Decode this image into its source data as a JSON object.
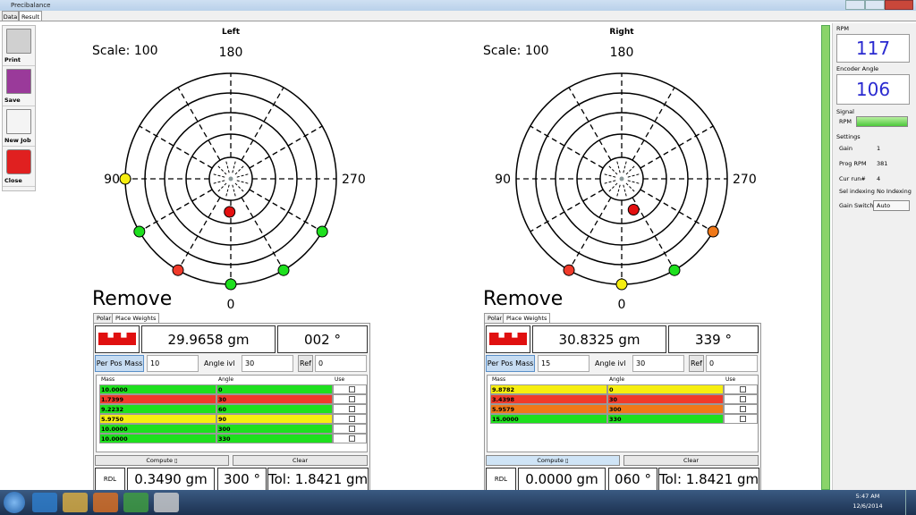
{
  "window": {
    "title": "Precibalance"
  },
  "tabs": [
    "Data",
    "Result"
  ],
  "toolbar": [
    "Print",
    "Save",
    "New Job",
    "Close"
  ],
  "panels": [
    {
      "title": "Left",
      "scale": "Scale: 100",
      "axis_labels": {
        "top": "180",
        "left": "90",
        "right": "270",
        "bottom": "0"
      },
      "action": "Remove",
      "subtabs": [
        "Polar",
        "Place Weights"
      ],
      "weight": "29.9658 gm",
      "angle": "002 °",
      "per_pos_button": "Per Pos Mass",
      "per_pos_value": "10",
      "angle_ivl_label": "Angle ivl",
      "angle_ivl_value": "30",
      "ref_button": "Ref",
      "ref_value": "0",
      "columns": [
        "Mass",
        "Angle",
        "Use"
      ],
      "rows": [
        {
          "mass": "10.0000",
          "angle": 0,
          "color": "#1ee01e"
        },
        {
          "mass": "1.7399",
          "angle": 30,
          "color": "#f03a2a"
        },
        {
          "mass": "9.2232",
          "angle": 60,
          "color": "#1ee01e"
        },
        {
          "mass": "5.9750",
          "angle": 90,
          "color": "#f6ee10"
        },
        {
          "mass": "10.0000",
          "angle": 300,
          "color": "#1ee01e"
        },
        {
          "mass": "10.0000",
          "angle": 330,
          "color": "#1ee01e"
        }
      ],
      "compute": "Compute ▯",
      "clear": "Clear",
      "footer": [
        "RDL",
        "0.3490 gm",
        "300 °",
        "Tol: 1.8421 gm"
      ]
    },
    {
      "title": "Right",
      "scale": "Scale: 100",
      "axis_labels": {
        "top": "180",
        "left": "90",
        "right": "270",
        "bottom": "0"
      },
      "action": "Remove",
      "subtabs": [
        "Polar",
        "Place Weights"
      ],
      "weight": "30.8325 gm",
      "angle": "339 °",
      "per_pos_button": "Per Pos Mass",
      "per_pos_value": "15",
      "angle_ivl_label": "Angle ivl",
      "angle_ivl_value": "30",
      "ref_button": "Ref",
      "ref_value": "0",
      "columns": [
        "Mass",
        "Angle",
        "Use"
      ],
      "rows": [
        {
          "mass": "9.8782",
          "angle": 0,
          "color": "#f6ee10"
        },
        {
          "mass": "3.4398",
          "angle": 30,
          "color": "#f03a2a"
        },
        {
          "mass": "5.9579",
          "angle": 300,
          "color": "#f07818"
        },
        {
          "mass": "15.0000",
          "angle": 330,
          "color": "#1ee01e"
        }
      ],
      "compute": "Compute ▯",
      "clear": "Clear",
      "footer": [
        "RDL",
        "0.0000 gm",
        "060 °",
        "Tol: 1.8421 gm"
      ]
    }
  ],
  "sidebar": {
    "rpm_label": "RPM",
    "rpm_value": "117",
    "encoder_label": "Encoder Angle",
    "encoder_value": "106",
    "signal_label": "Signal",
    "signal_rpm": "RPM",
    "settings_label": "Settings",
    "settings": [
      [
        "Gain",
        "1"
      ],
      [
        "Prog RPM",
        "381"
      ],
      [
        "Cur run#",
        "4"
      ],
      [
        "Sel indexing",
        "No Indexing"
      ],
      [
        "Gain Switch",
        "Auto"
      ]
    ]
  },
  "taskbar": {
    "time": "5:47 AM",
    "date": "12/6/2014"
  }
}
